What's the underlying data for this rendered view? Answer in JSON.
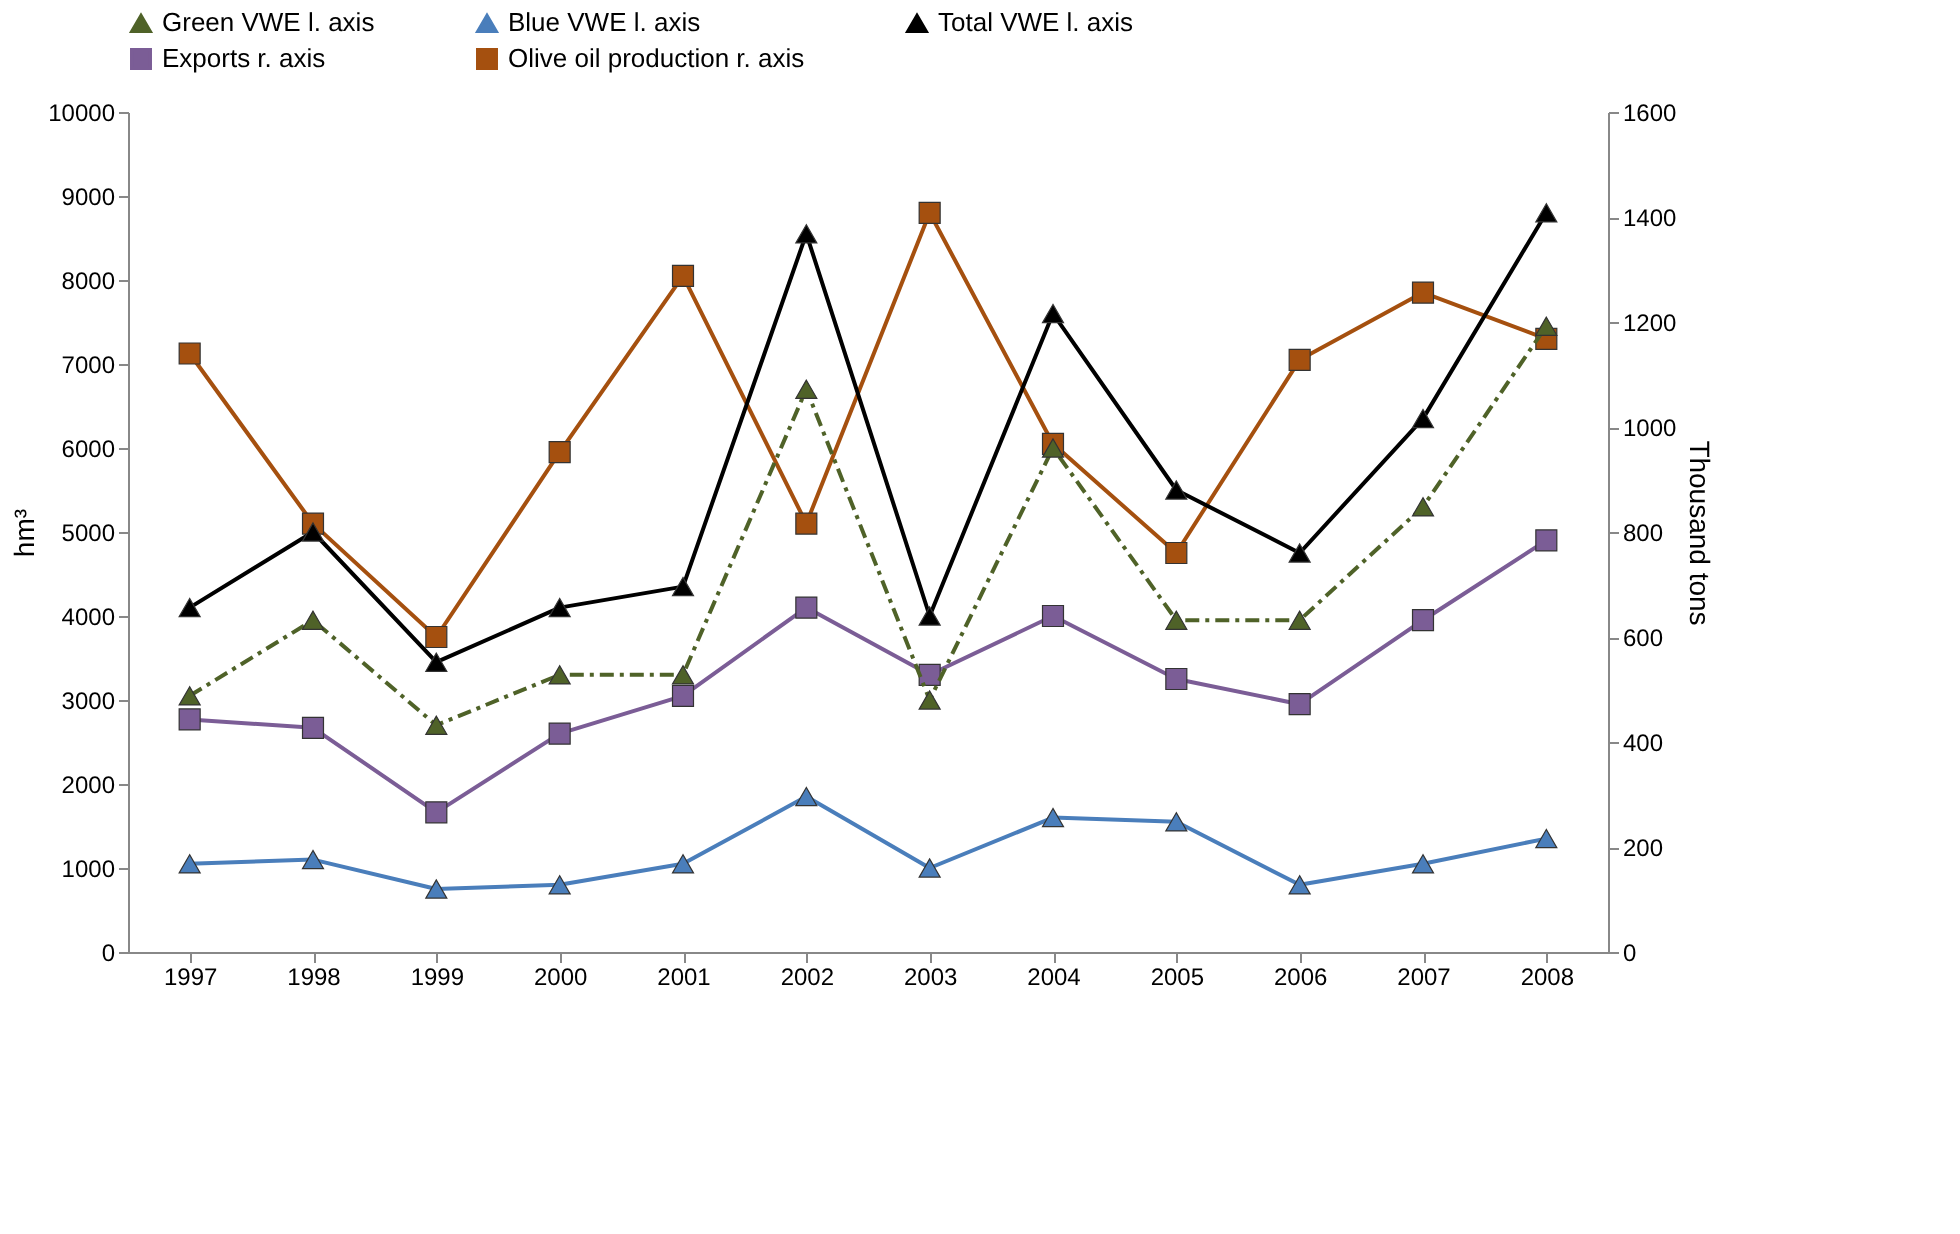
{
  "chart_data": {
    "type": "line",
    "categories": [
      "1997",
      "1998",
      "1999",
      "2000",
      "2001",
      "2002",
      "2003",
      "2004",
      "2005",
      "2006",
      "2007",
      "2008"
    ],
    "ylabel": "hm³",
    "y2label": "Thousand tons",
    "ylim": [
      0,
      10000
    ],
    "yticks": [
      0,
      1000,
      2000,
      3000,
      4000,
      5000,
      6000,
      7000,
      8000,
      9000,
      10000
    ],
    "y2lim": [
      0,
      1600
    ],
    "y2ticks": [
      0,
      200,
      400,
      600,
      800,
      1000,
      1200,
      1400,
      1600
    ],
    "grid": false,
    "legend": "top",
    "series": [
      {
        "name": "Green VWE   l. axis",
        "color": "#4f6228",
        "line_style": "dashed",
        "marker": "triangle",
        "values": [
          3050,
          3950,
          2700,
          3300,
          3300,
          6700,
          3000,
          6000,
          3950,
          3950,
          5300,
          7450
        ]
      },
      {
        "name": "Blue VWE   l. axis",
        "color": "#4a7ebb",
        "line_style": "solid",
        "marker": "triangle",
        "values": [
          1050,
          1100,
          750,
          800,
          1050,
          1850,
          1000,
          1600,
          1550,
          800,
          1050,
          1350
        ]
      },
      {
        "name": "Total VWE l. axis",
        "color": "#000000",
        "line_style": "solid",
        "marker": "triangle",
        "values": [
          4100,
          5000,
          3450,
          4100,
          4350,
          8550,
          4000,
          7600,
          5500,
          4750,
          6350,
          8800
        ]
      },
      {
        "name": "Exports   r. axis",
        "color": "#7b5d96",
        "line_style": "solid",
        "marker": "square",
        "axis": "y2",
        "values": [
          443,
          427,
          266,
          416,
          488,
          656,
          528,
          640,
          520,
          472,
          632,
          784
        ]
      },
      {
        "name": "Olive oil production   r. axis",
        "color": "#a5500f",
        "line_style": "solid",
        "marker": "square",
        "axis": "y2",
        "values": [
          1140,
          816,
          600,
          952,
          1288,
          816,
          1408,
          968,
          760,
          1128,
          1256,
          1168
        ]
      }
    ]
  }
}
